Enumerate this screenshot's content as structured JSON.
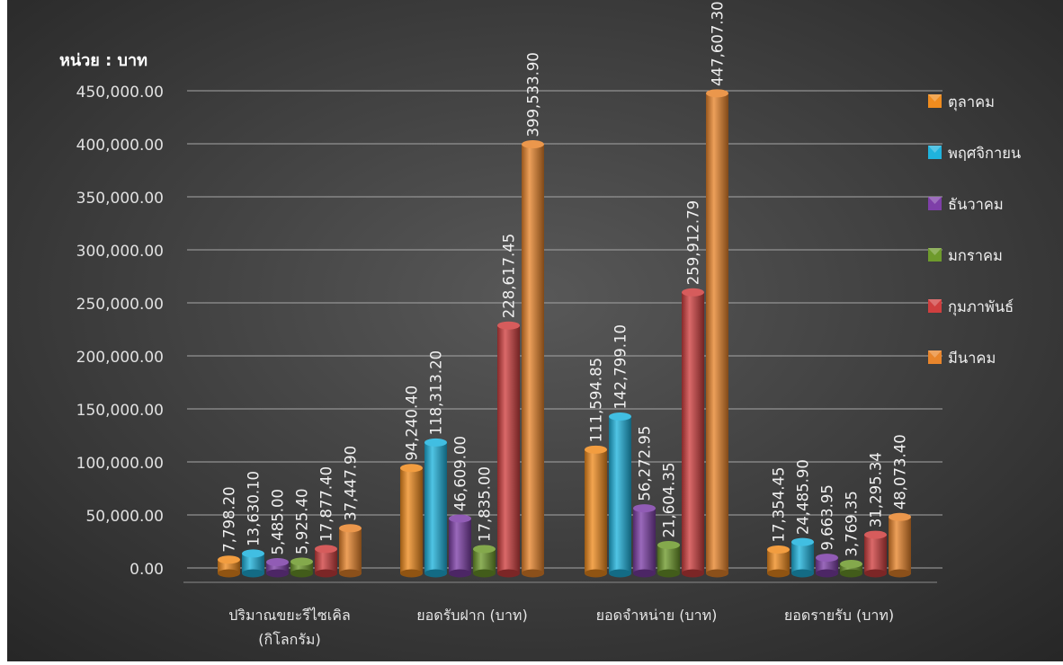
{
  "chart_data": {
    "type": "bar",
    "unit_label": "หน่วย : บาท",
    "categories": [
      [
        "ปริมาณขยะรีไซเคิล",
        "(กิโลกรัม)"
      ],
      [
        "ยอดรับฝาก  (บาท)"
      ],
      [
        "ยอดจำหน่าย  (บาท)"
      ],
      [
        "ยอดรายรับ  (บาท)"
      ]
    ],
    "series": [
      {
        "name": "ตุลาคม",
        "color": "#F08C1E",
        "values": [
          7798.2,
          94240.4,
          111594.85,
          17354.45
        ],
        "labels": [
          "7,798.20",
          "94,240.40",
          "111,594.85",
          "17,354.45"
        ]
      },
      {
        "name": "พฤศจิกายน",
        "color": "#1FB3DD",
        "values": [
          13630.1,
          118313.2,
          142799.1,
          24485.9
        ],
        "labels": [
          "13,630.10",
          "118,313.20",
          "142,799.10",
          "24,485.90"
        ]
      },
      {
        "name": "ธันวาคม",
        "color": "#7E3FA8",
        "values": [
          5485.0,
          46609.0,
          56272.95,
          9663.95
        ],
        "labels": [
          "5,485.00",
          "46,609.00",
          "56,272.95",
          "9,663.95"
        ]
      },
      {
        "name": "มกราคม",
        "color": "#6E9A2C",
        "values": [
          5925.4,
          17835.0,
          21604.35,
          3769.35
        ],
        "labels": [
          "5,925.40",
          "17,835.00",
          "21,604.35",
          "3,769.35"
        ]
      },
      {
        "name": "กุมภาพันธ์",
        "color": "#CF3F3F",
        "values": [
          17877.4,
          228617.45,
          259912.79,
          31295.34
        ],
        "labels": [
          "17,877.40",
          "228,617.45",
          "259,912.79",
          "31,295.34"
        ]
      },
      {
        "name": "มีนาคม",
        "color": "#E8852C",
        "values": [
          37447.9,
          399533.9,
          447607.3,
          48073.4
        ],
        "labels": [
          "37,447.90",
          "399,533.90",
          "447,607.30",
          "48,073.40"
        ]
      }
    ],
    "ylim": [
      0,
      450000
    ],
    "yticks": [
      "0.00",
      "50,000.00",
      "100,000.00",
      "150,000.00",
      "200,000.00",
      "250,000.00",
      "300,000.00",
      "350,000.00",
      "400,000.00",
      "450,000.00"
    ],
    "grid": true,
    "legend_position": "right"
  }
}
